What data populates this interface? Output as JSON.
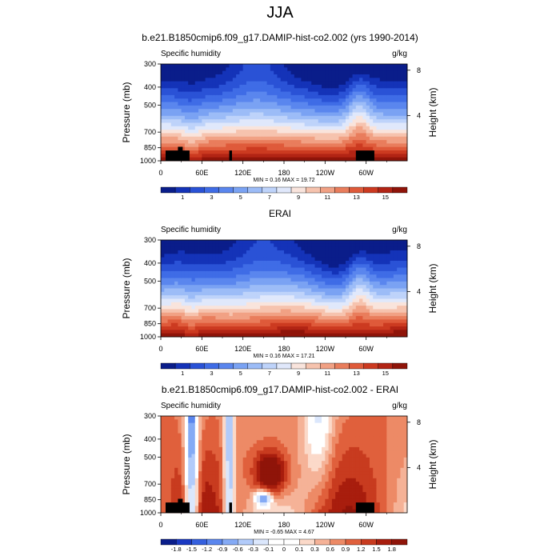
{
  "figure": {
    "title": "JJA",
    "panels": [
      {
        "title": "b.e21.B1850cmip6.f09_g17.DAMIP-hist-co2.002 (yrs 1990-2014)",
        "left_label": "Specific humidity",
        "right_label": "g/kg",
        "ylabel": "Pressure (mb)",
        "y2label": "Height (km)",
        "minmax": "MIN =   0.16  MAX =  19.72"
      },
      {
        "title": "ERAI",
        "left_label": "Specific humidity",
        "right_label": "g/kg",
        "ylabel": "Pressure (mb)",
        "y2label": "Height (km)",
        "minmax": "MIN =   0.16  MAX =  17.21"
      },
      {
        "title": "b.e21.B1850cmip6.f09_g17.DAMIP-hist-co2.002 - ERAI",
        "left_label": "Specific humidity",
        "right_label": "g/kg",
        "ylabel": "Pressure (mb)",
        "y2label": "Height (km)",
        "minmax": "MIN =  -0.65  MAX =   4.67"
      }
    ]
  },
  "chart_data": [
    {
      "type": "heatmap",
      "title": "b.e21.B1850cmip6.f09_g17.DAMIP-hist-co2.002 (yrs 1990-2014)",
      "xlabel": "",
      "ylabel": "Pressure (mb)",
      "y2label": "Height (km)",
      "x_ticks": [
        "0",
        "60E",
        "120E",
        "180",
        "120W",
        "60W"
      ],
      "x_tick_values": [
        0,
        60,
        120,
        180,
        240,
        300
      ],
      "xlim": [
        0,
        360
      ],
      "y_ticks": [
        "300",
        "400",
        "500",
        "700",
        "850",
        "1000"
      ],
      "y_tick_values": [
        300,
        400,
        500,
        700,
        850,
        1000
      ],
      "ylim": [
        1000,
        300
      ],
      "y_scale": "log",
      "y2_ticks": [
        "8",
        "4"
      ],
      "y2_tick_values": [
        8,
        4
      ],
      "colorbar_labels": [
        "1",
        "3",
        "5",
        "7",
        "9",
        "11",
        "13",
        "15"
      ],
      "colorbar_levels": [
        0.5,
        1,
        2,
        3,
        4,
        5,
        6,
        7,
        8,
        9,
        10,
        11,
        12,
        13,
        14,
        15,
        16
      ],
      "min": 0.16,
      "max": 19.72,
      "variant": "model"
    },
    {
      "type": "heatmap",
      "title": "ERAI",
      "xlabel": "",
      "ylabel": "Pressure (mb)",
      "y2label": "Height (km)",
      "x_ticks": [
        "0",
        "60E",
        "120E",
        "180",
        "120W",
        "60W"
      ],
      "x_tick_values": [
        0,
        60,
        120,
        180,
        240,
        300
      ],
      "xlim": [
        0,
        360
      ],
      "y_ticks": [
        "300",
        "400",
        "500",
        "700",
        "850",
        "1000"
      ],
      "y_tick_values": [
        300,
        400,
        500,
        700,
        850,
        1000
      ],
      "ylim": [
        1000,
        300
      ],
      "y_scale": "log",
      "y2_ticks": [
        "8",
        "4"
      ],
      "y2_tick_values": [
        8,
        4
      ],
      "colorbar_labels": [
        "1",
        "3",
        "5",
        "7",
        "9",
        "11",
        "13",
        "15"
      ],
      "colorbar_levels": [
        0.5,
        1,
        2,
        3,
        4,
        5,
        6,
        7,
        8,
        9,
        10,
        11,
        12,
        13,
        14,
        15,
        16
      ],
      "min": 0.16,
      "max": 17.21,
      "variant": "obs"
    },
    {
      "type": "heatmap",
      "title": "b.e21.B1850cmip6.f09_g17.DAMIP-hist-co2.002 - ERAI",
      "xlabel": "",
      "ylabel": "Pressure (mb)",
      "y2label": "Height (km)",
      "x_ticks": [
        "0",
        "60E",
        "120E",
        "180",
        "120W",
        "60W"
      ],
      "x_tick_values": [
        0,
        60,
        120,
        180,
        240,
        300
      ],
      "xlim": [
        0,
        360
      ],
      "y_ticks": [
        "300",
        "400",
        "500",
        "700",
        "850",
        "1000"
      ],
      "y_tick_values": [
        300,
        400,
        500,
        700,
        850,
        1000
      ],
      "ylim": [
        1000,
        300
      ],
      "y_scale": "log",
      "y2_ticks": [
        "8",
        "4"
      ],
      "y2_tick_values": [
        8,
        4
      ],
      "colorbar_labels": [
        "-1.8",
        "-1.5",
        "-1.2",
        "-0.9",
        "-0.6",
        "-0.3",
        "-0.1",
        "0",
        "0.1",
        "0.3",
        "0.6",
        "0.9",
        "1.2",
        "1.5",
        "1.8"
      ],
      "colorbar_levels": [
        -1.8,
        -1.5,
        -1.2,
        -0.9,
        -0.6,
        -0.3,
        -0.1,
        0,
        0.1,
        0.3,
        0.6,
        0.9,
        1.2,
        1.5,
        1.8
      ],
      "min": -0.65,
      "max": 4.67,
      "variant": "diff"
    }
  ],
  "colors": {
    "seq": [
      "#0a1d8a",
      "#1433b8",
      "#2a52d6",
      "#3f6ce6",
      "#5a86ee",
      "#7aa2f3",
      "#9cbcf7",
      "#bed3fa",
      "#e0e8fb",
      "#f9e4dc",
      "#f6c3ae",
      "#f1a184",
      "#e97d5c",
      "#df5a3a",
      "#cc3a20",
      "#b22414",
      "#8f1409"
    ],
    "div": [
      "#0a1d8a",
      "#1a39c2",
      "#3560de",
      "#5a86ee",
      "#84aaf5",
      "#b2cbfa",
      "#dbe7fc",
      "#ffffff",
      "#ffffff",
      "#fbd9c9",
      "#f5b297",
      "#ed8a66",
      "#e0603c",
      "#c83b1f",
      "#a81d0d",
      "#8f1409"
    ],
    "topography": "#000000"
  }
}
